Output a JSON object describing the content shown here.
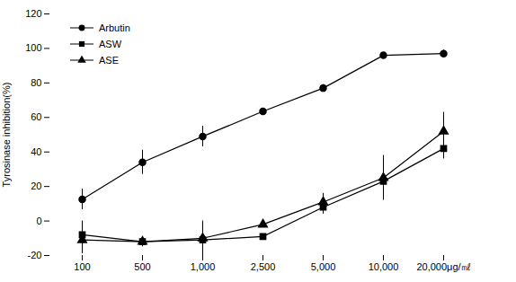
{
  "chart_data": {
    "type": "line",
    "y_label": "Tyrosinase inhibition(%)",
    "categories": [
      "100",
      "500",
      "1,000",
      "2,500",
      "5,000",
      "10,000",
      "20,000μg/㎖"
    ],
    "series": [
      {
        "name": "Arbutin",
        "color": "#000000",
        "marker": "circle",
        "line_style": "solid",
        "values": [
          12.5,
          34,
          49,
          63.5,
          77,
          96,
          97
        ],
        "errors": [
          6,
          7,
          6,
          1.5,
          2,
          1,
          2
        ]
      },
      {
        "name": "ASW",
        "color": "#000000",
        "marker": "square",
        "line_style": "solid",
        "values": [
          -8,
          -12,
          -11,
          -9,
          8,
          23,
          42
        ],
        "errors": [
          8,
          3,
          9,
          1,
          4,
          10,
          6
        ]
      },
      {
        "name": "ASE",
        "color": "#000000",
        "marker": "triangle",
        "line_style": "solid",
        "values": [
          -11,
          -12,
          -10,
          -2,
          11,
          25,
          52
        ],
        "errors": [
          8,
          2,
          10,
          1,
          5,
          13,
          11
        ]
      }
    ],
    "ylim": [
      -20,
      120
    ],
    "yticks": [
      -20,
      0,
      20,
      40,
      60,
      80,
      100,
      120
    ],
    "grid": false,
    "legend": "top-left"
  }
}
